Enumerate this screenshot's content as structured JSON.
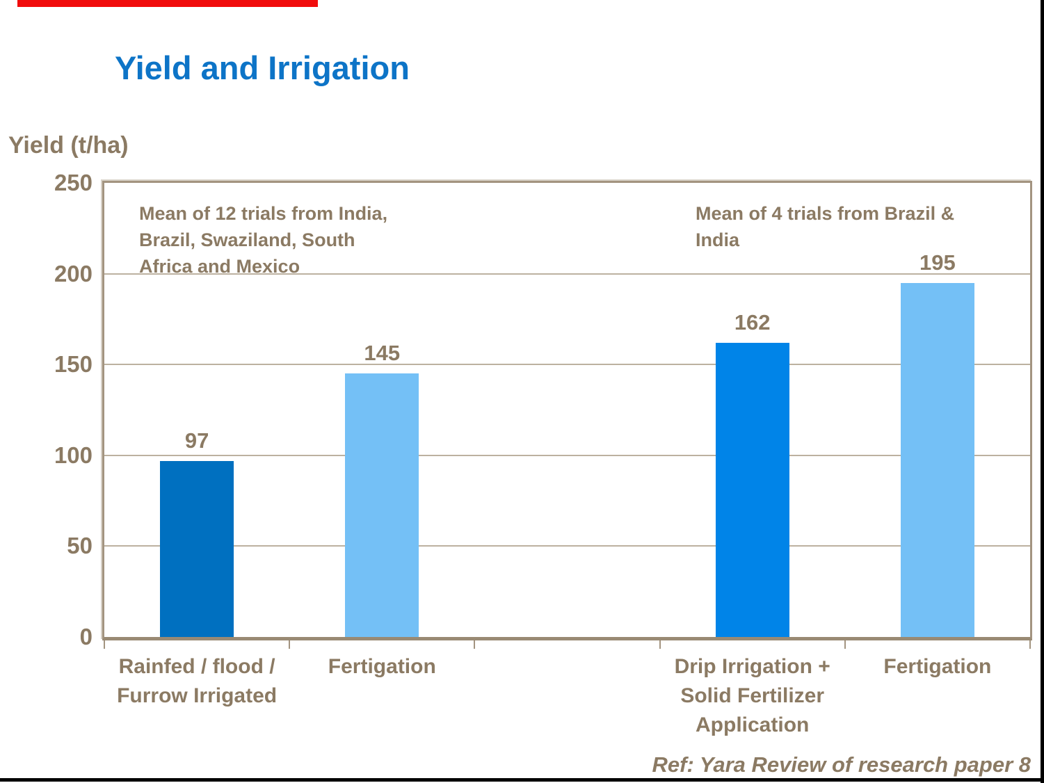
{
  "slide": {
    "title": "Yield and Irrigation"
  },
  "footer": {
    "ref": "Ref: Yara Review of research paper 8"
  },
  "colors": {
    "title_blue": "#0d74c7",
    "text_brown": "#8b7a63",
    "bar_dark_blue": "#0070c0",
    "bar_bright_blue": "#0084e8",
    "bar_light_blue": "#74c0f6",
    "plot_border_tan": "#a39480",
    "gridline_tan": "#bcb1a0",
    "progress_red": "#f10c0c"
  },
  "chart_data": {
    "type": "bar",
    "title": "Yield and Irrigation",
    "ylabel": "Yield (t/ha)",
    "xlabel": "",
    "ylim": [
      0,
      250
    ],
    "yticks": [
      0,
      50,
      100,
      150,
      200,
      250
    ],
    "grid": true,
    "legend": "none",
    "categories": [
      "Rainfed / flood / Furrow Irrigated",
      "Fertigation",
      "",
      "Drip Irrigation + Solid Fertilizer Application",
      "Fertigation"
    ],
    "category_label_lines": [
      "Rainfed / flood /\nFurrow Irrigated",
      "Fertigation",
      "",
      "Drip Irrigation +\nSolid Fertilizer\nApplication",
      "Fertigation"
    ],
    "values": [
      97,
      145,
      null,
      162,
      195
    ],
    "bar_color_roles": [
      "dark_blue",
      "light_blue",
      null,
      "bright_blue",
      "light_blue"
    ],
    "annotations": [
      {
        "text": "Mean of 12 trials from India,\nBrazil, Swaziland, South\nAfrica and Mexico"
      },
      {
        "text": "Mean of 4 trials from Brazil &\nIndia"
      }
    ]
  }
}
